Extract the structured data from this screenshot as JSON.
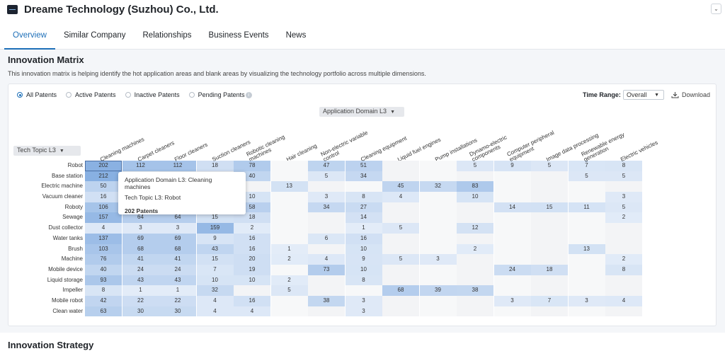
{
  "company": {
    "name": "Dreame Technology (Suzhou) Co., Ltd."
  },
  "tabs": [
    "Overview",
    "Similar Company",
    "Relationships",
    "Business Events",
    "News"
  ],
  "section": {
    "title": "Innovation Matrix",
    "description": "This innovation matrix is helping identify the hot application areas and blank areas by visualizing the technology portfolio across multiple dimensions."
  },
  "filters": {
    "radios": [
      "All Patents",
      "Active Patents",
      "Inactive Patents",
      "Pending Patents"
    ],
    "selected": "All Patents",
    "time_range_label": "Time Range:",
    "time_range_value": "Overall",
    "download_label": "Download",
    "column_dim": "Application Domain L3",
    "row_dim": "Tech Topic L3"
  },
  "colors": {
    "accent": "#1d6fb8",
    "cell_heat": "#3f7fd0"
  },
  "matrix": {
    "columns": [
      "Cleaning machines",
      "Carpet cleaners",
      "Floor cleaners",
      "Suction cleaners",
      "Robotic cleaning\nmachines",
      "Hair cleaning",
      "Non-electric variable\ncontrol",
      "Cleaning equipment",
      "Liquid fuel engines",
      "Pump installations",
      "Dynamo-electric\ncomponents",
      "Computer peripheral\nequipment",
      "Image data processing",
      "Renewable energy\ngeneration",
      "Electric vehicles"
    ],
    "rows": [
      {
        "label": "Robot",
        "values": [
          202,
          112,
          112,
          18,
          78,
          null,
          47,
          51,
          null,
          null,
          5,
          9,
          5,
          7,
          8
        ]
      },
      {
        "label": "Base station",
        "values": [
          212,
          null,
          null,
          null,
          40,
          null,
          5,
          34,
          null,
          null,
          null,
          null,
          null,
          5,
          5
        ]
      },
      {
        "label": "Electric machine",
        "values": [
          50,
          null,
          null,
          5,
          null,
          13,
          null,
          null,
          45,
          32,
          83,
          null,
          null,
          null,
          null
        ]
      },
      {
        "label": "Vacuum cleaner",
        "values": [
          16,
          null,
          null,
          null,
          10,
          null,
          3,
          8,
          4,
          null,
          10,
          null,
          null,
          null,
          3
        ]
      },
      {
        "label": "Roboty",
        "values": [
          106,
          null,
          null,
          null,
          58,
          null,
          34,
          27,
          null,
          null,
          null,
          14,
          15,
          11,
          5
        ]
      },
      {
        "label": "Sewage",
        "values": [
          157,
          64,
          64,
          15,
          18,
          null,
          null,
          14,
          null,
          null,
          null,
          null,
          null,
          null,
          2
        ]
      },
      {
        "label": "Dust collector",
        "values": [
          4,
          3,
          3,
          159,
          2,
          null,
          null,
          1,
          5,
          null,
          12,
          null,
          null,
          null,
          null
        ]
      },
      {
        "label": "Water tanks",
        "values": [
          137,
          69,
          69,
          9,
          16,
          null,
          6,
          16,
          null,
          null,
          null,
          null,
          null,
          null,
          null
        ]
      },
      {
        "label": "Brush",
        "values": [
          103,
          68,
          68,
          43,
          16,
          1,
          null,
          10,
          null,
          null,
          2,
          null,
          null,
          13,
          null
        ]
      },
      {
        "label": "Machine",
        "values": [
          76,
          41,
          41,
          15,
          20,
          2,
          4,
          9,
          5,
          3,
          null,
          null,
          null,
          null,
          2
        ]
      },
      {
        "label": "Mobile device",
        "values": [
          40,
          24,
          24,
          7,
          19,
          null,
          73,
          10,
          null,
          null,
          null,
          24,
          18,
          null,
          8
        ]
      },
      {
        "label": "Liquid storage",
        "values": [
          93,
          43,
          43,
          10,
          10,
          2,
          null,
          8,
          null,
          null,
          null,
          null,
          null,
          null,
          null
        ]
      },
      {
        "label": "Impeller",
        "values": [
          8,
          1,
          1,
          32,
          null,
          5,
          null,
          null,
          68,
          39,
          38,
          null,
          null,
          null,
          null
        ]
      },
      {
        "label": "Mobile robot",
        "values": [
          42,
          22,
          22,
          4,
          16,
          null,
          38,
          3,
          null,
          null,
          null,
          3,
          7,
          3,
          4
        ]
      },
      {
        "label": "Clean water",
        "values": [
          63,
          30,
          30,
          4,
          4,
          null,
          null,
          3,
          null,
          null,
          null,
          null,
          null,
          null,
          null
        ]
      }
    ],
    "max": 212
  },
  "tooltip": {
    "line1": "Application Domain L3: Cleaning machines",
    "line2": "Tech Topic L3: Robot",
    "count": "202 Patents"
  },
  "next_section": "Innovation Strategy"
}
